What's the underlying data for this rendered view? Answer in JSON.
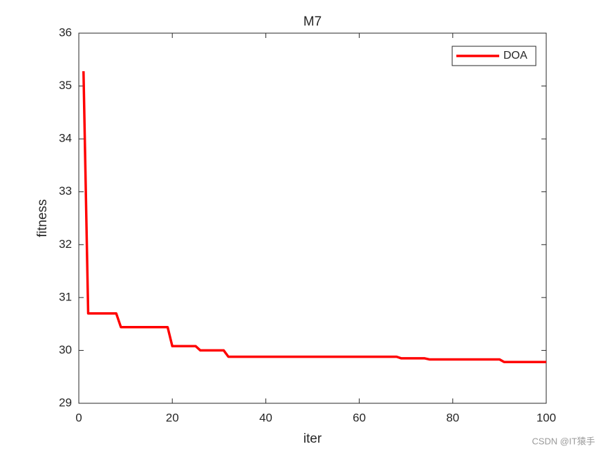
{
  "chart_data": {
    "type": "line",
    "title": "M7",
    "x_label": "iter",
    "y_label": "fitness",
    "x": [
      1,
      2,
      8,
      9,
      19,
      20,
      25,
      26,
      31,
      32,
      68,
      69,
      74,
      75,
      90,
      91,
      100
    ],
    "series": [
      {
        "name": "DOA",
        "color": "#ff0000",
        "values": [
          35.28,
          30.7,
          30.7,
          30.44,
          30.44,
          30.08,
          30.08,
          30.0,
          30.0,
          29.88,
          29.88,
          29.85,
          29.85,
          29.83,
          29.83,
          29.78,
          29.78
        ]
      }
    ],
    "xlim": [
      0,
      100
    ],
    "xticks": [
      0,
      20,
      40,
      60,
      80,
      100
    ],
    "ylim": [
      29,
      36
    ],
    "yticks": [
      29,
      30,
      31,
      32,
      33,
      34,
      35,
      36
    ],
    "grid": false,
    "legend": "northeast",
    "watermark": "CSDN @IT猿手"
  }
}
